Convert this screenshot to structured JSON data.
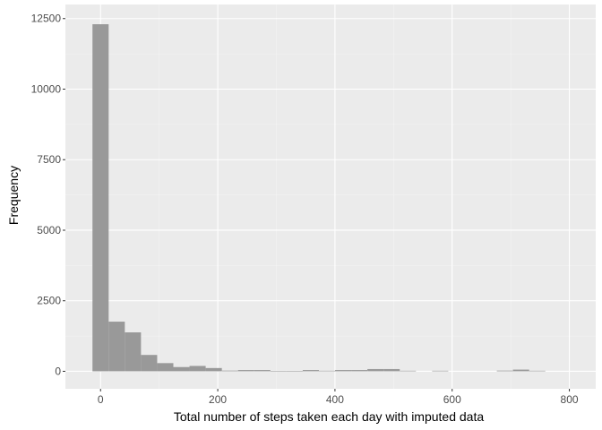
{
  "chart_data": {
    "type": "bar",
    "title": "",
    "xlabel": "Total number of steps taken each day with imputed data",
    "ylabel": "Frequency",
    "xlim": [
      -60,
      845
    ],
    "ylim": [
      -620,
      13000
    ],
    "xticks": [
      0,
      200,
      400,
      600,
      800
    ],
    "xtick_labels": [
      "0",
      "200",
      "400",
      "600",
      "800"
    ],
    "yticks": [
      0,
      2500,
      5000,
      7500,
      10000,
      12500
    ],
    "ytick_labels": [
      "0",
      "2500",
      "5000",
      "7500",
      "10000",
      "12500"
    ],
    "bin_width": 27.6,
    "bin_start": -13.8,
    "values": [
      12300,
      1760,
      1380,
      580,
      290,
      150,
      190,
      115,
      25,
      45,
      45,
      15,
      12,
      45,
      20,
      45,
      45,
      80,
      80,
      20,
      0,
      20,
      0,
      0,
      0,
      25,
      60,
      20
    ],
    "grid": true,
    "legend": "none",
    "colors": {
      "panel_background": "#ebebeb",
      "grid_major": "#ffffff",
      "grid_minor": "#f5f5f5",
      "bar_fill": "#999999",
      "tick_text": "#4d4d4d",
      "tick_mark": "#333333",
      "axis_title": "#000000"
    }
  }
}
